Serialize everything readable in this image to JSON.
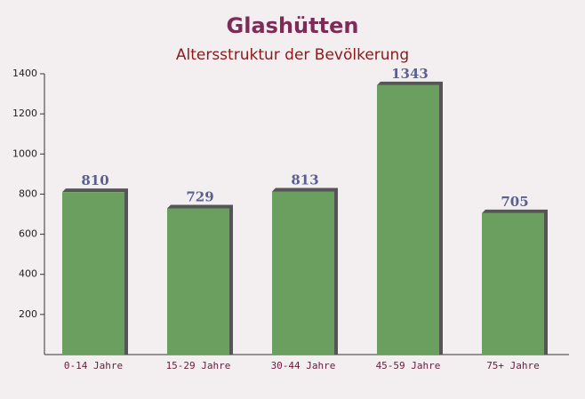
{
  "chart_data": {
    "type": "bar",
    "title": "Glashütten",
    "subtitle": "Altersstruktur der Bevölkerung",
    "categories": [
      "0-14 Jahre",
      "15-29 Jahre",
      "30-44 Jahre",
      "45-59 Jahre",
      "75+ Jahre"
    ],
    "values": [
      810,
      729,
      813,
      1343,
      705
    ],
    "color": "#6a9f5f",
    "ylim": [
      0,
      1400
    ],
    "yticks": [
      200,
      400,
      600,
      800,
      1000,
      1200,
      1400
    ],
    "grid": false
  }
}
